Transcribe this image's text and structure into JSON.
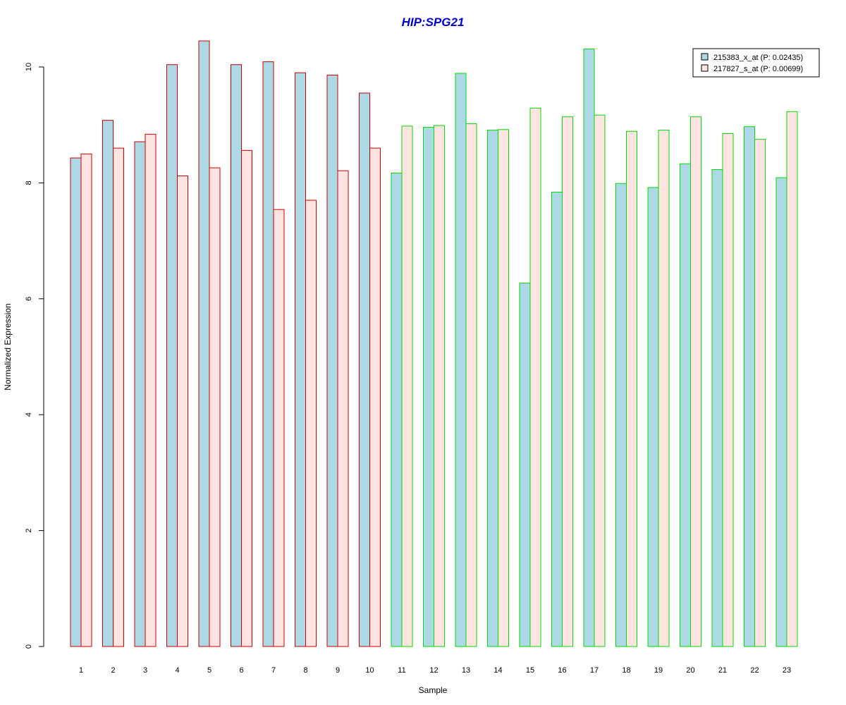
{
  "chart_data": {
    "type": "bar",
    "title": "HIP:SPG21",
    "xlabel": "Sample",
    "ylabel": "Normalized Expression",
    "ylim": [
      0,
      10.5
    ],
    "yticks": [
      0,
      2,
      4,
      6,
      8,
      10
    ],
    "categories": [
      "1",
      "2",
      "3",
      "4",
      "5",
      "6",
      "7",
      "8",
      "9",
      "10",
      "11",
      "12",
      "13",
      "14",
      "15",
      "16",
      "17",
      "18",
      "19",
      "20",
      "21",
      "22",
      "23"
    ],
    "series": [
      {
        "name": "215383_x_at (P: 0.02435)",
        "fill": "#add8e6",
        "values": [
          8.43,
          9.08,
          8.71,
          10.04,
          10.45,
          10.04,
          10.09,
          9.9,
          9.86,
          9.55,
          8.17,
          8.96,
          9.89,
          8.91,
          6.27,
          7.84,
          10.31,
          7.99,
          7.92,
          8.33,
          8.23,
          8.97,
          8.09
        ]
      },
      {
        "name": "217827_s_at (P: 0.00699)",
        "fill": "#ffe4e1",
        "values": [
          8.5,
          8.6,
          8.84,
          8.12,
          8.26,
          8.56,
          7.54,
          7.7,
          8.21,
          8.6,
          8.98,
          8.99,
          9.02,
          8.92,
          9.29,
          9.14,
          9.17,
          8.89,
          8.91,
          9.14,
          8.85,
          8.75,
          9.23
        ]
      }
    ],
    "border_colors": [
      "#d00000",
      "#d00000",
      "#d00000",
      "#d00000",
      "#d00000",
      "#d00000",
      "#d00000",
      "#d00000",
      "#d00000",
      "#d00000",
      "#00dd00",
      "#00dd00",
      "#00dd00",
      "#00dd00",
      "#00dd00",
      "#00dd00",
      "#00dd00",
      "#00dd00",
      "#00dd00",
      "#00dd00",
      "#00dd00",
      "#00dd00",
      "#00dd00"
    ],
    "title_color": "#0000cc",
    "legend": {
      "placement": "top-right"
    }
  }
}
